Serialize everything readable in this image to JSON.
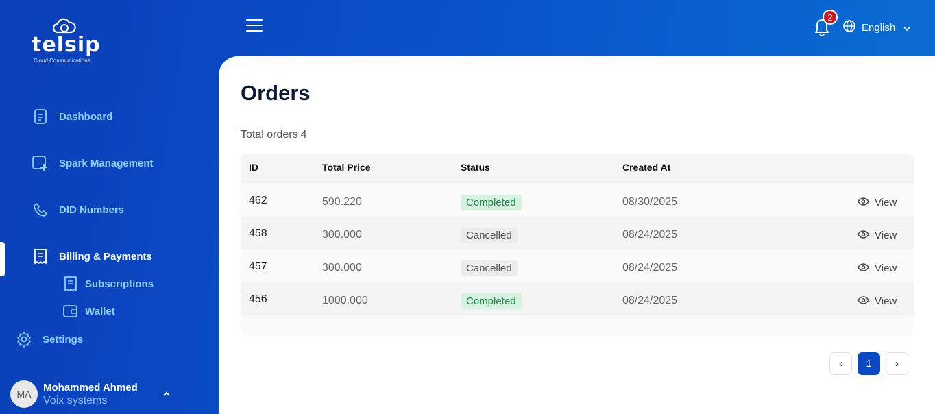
{
  "brand": {
    "name": "telsip",
    "tagline": "Cloud Communications"
  },
  "sidebar": {
    "items": [
      {
        "label": "Dashboard",
        "icon": "clipboard-list-icon"
      },
      {
        "label": "Spark Management",
        "icon": "add-square-icon"
      },
      {
        "label": "DID Numbers",
        "icon": "phone-icon"
      },
      {
        "label": "Billing & Payments",
        "icon": "receipt-icon",
        "active": true
      },
      {
        "label": "Subscriptions",
        "icon": "receipt-icon"
      },
      {
        "label": "Wallet",
        "icon": "wallet-icon"
      },
      {
        "label": "Settings",
        "icon": "gear-icon"
      }
    ],
    "user": {
      "initials": "MA",
      "name": "Mohammed Ahmed",
      "org": "Voix systems"
    }
  },
  "header": {
    "notifications": "2",
    "language": "English"
  },
  "main": {
    "title": "Orders",
    "total_label": "Total orders",
    "total_count": "4",
    "columns": [
      "ID",
      "Total Price",
      "Status",
      "Created At"
    ],
    "rows": [
      {
        "id": "462",
        "price": "590.220",
        "status": "Completed",
        "created": "08/30/2025",
        "action": "View"
      },
      {
        "id": "458",
        "price": "300.000",
        "status": "Cancelled",
        "created": "08/24/2025",
        "action": "View"
      },
      {
        "id": "457",
        "price": "300.000",
        "status": "Cancelled",
        "created": "08/24/2025",
        "action": "View"
      },
      {
        "id": "456",
        "price": "1000.000",
        "status": "Completed",
        "created": "08/24/2025",
        "action": "View"
      }
    ],
    "pagination": {
      "prev": "‹",
      "current": "1",
      "next": "›"
    }
  },
  "colors": {
    "accent": "#0a47c2",
    "completed_bg": "#d4f2df",
    "completed_text": "#1e8a4d",
    "notification": "#c8191f"
  }
}
